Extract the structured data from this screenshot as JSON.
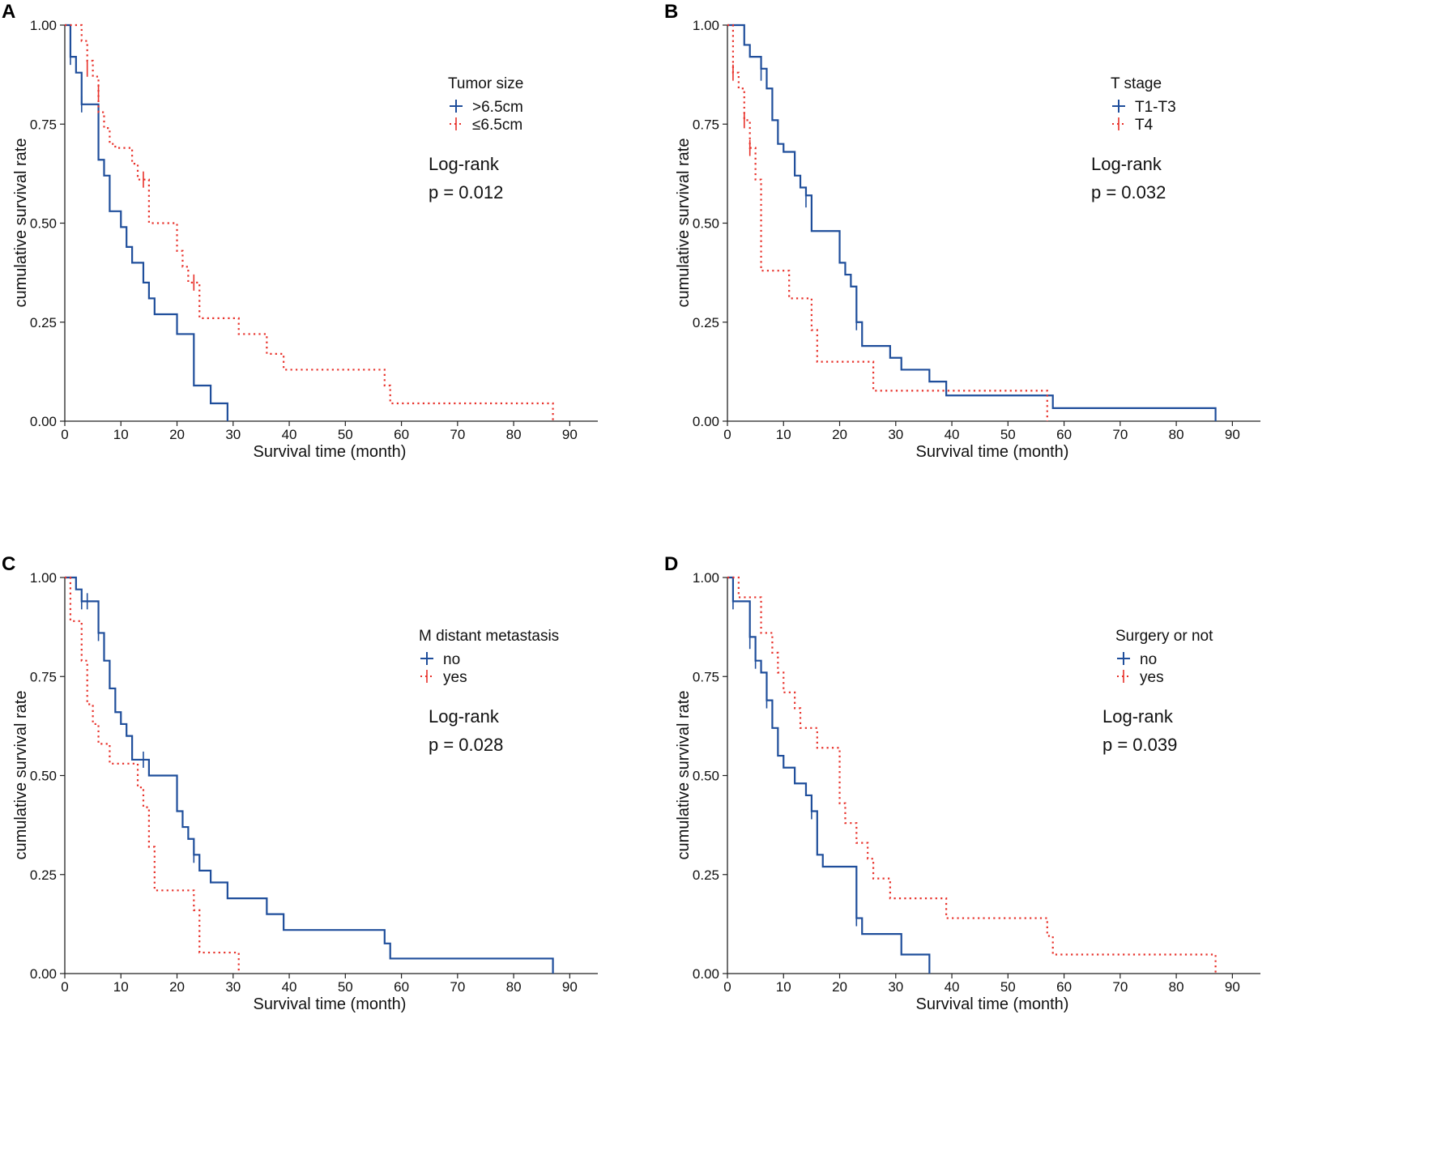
{
  "colors": {
    "solid": "#1f4e9b",
    "dotted": "#e8312a",
    "axis": "#222222"
  },
  "chart_data": [
    {
      "type": "line",
      "panel": "A",
      "xlabel": "Survival time (month)",
      "ylabel": "cumulative survival rate",
      "xlim": [
        0,
        95
      ],
      "ylim": [
        0,
        1
      ],
      "xticks": [
        "0",
        "10",
        "20",
        "30",
        "40",
        "50",
        "60",
        "70",
        "80",
        "90"
      ],
      "yticks": [
        "0.00",
        "0.25",
        "0.50",
        "0.75",
        "1.00"
      ],
      "legend_title": "Tumor size",
      "stat_label": "Log-rank",
      "p_value": "p = 0.012",
      "series": [
        {
          "name": ">6.5cm",
          "style": "solid",
          "steps": [
            [
              0,
              1.0
            ],
            [
              1,
              0.92
            ],
            [
              2,
              0.88
            ],
            [
              3,
              0.8
            ],
            [
              6,
              0.66
            ],
            [
              7,
              0.62
            ],
            [
              8,
              0.53
            ],
            [
              10,
              0.49
            ],
            [
              11,
              0.44
            ],
            [
              12,
              0.4
            ],
            [
              14,
              0.35
            ],
            [
              15,
              0.31
            ],
            [
              16,
              0.27
            ],
            [
              20,
              0.22
            ],
            [
              23,
              0.09
            ],
            [
              26,
              0.045
            ],
            [
              29,
              0.0
            ]
          ],
          "censors": [
            [
              1,
              0.92
            ],
            [
              3,
              0.8
            ]
          ]
        },
        {
          "name": "≤6.5cm",
          "style": "dotted",
          "steps": [
            [
              0,
              1.0
            ],
            [
              3,
              0.96
            ],
            [
              4,
              0.91
            ],
            [
              5,
              0.87
            ],
            [
              6,
              0.78
            ],
            [
              7,
              0.74
            ],
            [
              8,
              0.7
            ],
            [
              9,
              0.69
            ],
            [
              12,
              0.65
            ],
            [
              13,
              0.61
            ],
            [
              15,
              0.5
            ],
            [
              20,
              0.43
            ],
            [
              21,
              0.39
            ],
            [
              22,
              0.35
            ],
            [
              24,
              0.26
            ],
            [
              31,
              0.22
            ],
            [
              36,
              0.17
            ],
            [
              39,
              0.13
            ],
            [
              57,
              0.09
            ],
            [
              58,
              0.045
            ],
            [
              87,
              0.0
            ]
          ],
          "censors": [
            [
              4,
              0.89
            ],
            [
              6,
              0.83
            ],
            [
              14,
              0.61
            ],
            [
              23,
              0.35
            ]
          ]
        }
      ]
    },
    {
      "type": "line",
      "panel": "B",
      "xlabel": "Survival time (month)",
      "ylabel": "cumulative survival rate",
      "xlim": [
        0,
        95
      ],
      "ylim": [
        0,
        1
      ],
      "xticks": [
        "0",
        "10",
        "20",
        "30",
        "40",
        "50",
        "60",
        "70",
        "80",
        "90"
      ],
      "yticks": [
        "0.00",
        "0.25",
        "0.50",
        "0.75",
        "1.00"
      ],
      "legend_title": "T stage",
      "stat_label": "Log-rank",
      "p_value": "p = 0.032",
      "series": [
        {
          "name": "T1-T3",
          "style": "solid",
          "steps": [
            [
              0,
              1.0
            ],
            [
              3,
              0.95
            ],
            [
              4,
              0.92
            ],
            [
              6,
              0.89
            ],
            [
              7,
              0.84
            ],
            [
              8,
              0.76
            ],
            [
              9,
              0.7
            ],
            [
              10,
              0.68
            ],
            [
              12,
              0.62
            ],
            [
              13,
              0.59
            ],
            [
              14,
              0.57
            ],
            [
              15,
              0.48
            ],
            [
              20,
              0.4
            ],
            [
              21,
              0.37
            ],
            [
              22,
              0.34
            ],
            [
              23,
              0.25
            ],
            [
              24,
              0.19
            ],
            [
              29,
              0.16
            ],
            [
              31,
              0.13
            ],
            [
              36,
              0.1
            ],
            [
              39,
              0.065
            ],
            [
              58,
              0.033
            ],
            [
              87,
              0.0
            ]
          ],
          "censors": [
            [
              6,
              0.88
            ],
            [
              14,
              0.56
            ],
            [
              23,
              0.25
            ]
          ]
        },
        {
          "name": "T4",
          "style": "dotted",
          "steps": [
            [
              0,
              1.0
            ],
            [
              1,
              0.88
            ],
            [
              2,
              0.84
            ],
            [
              3,
              0.76
            ],
            [
              4,
              0.69
            ],
            [
              5,
              0.61
            ],
            [
              6,
              0.38
            ],
            [
              11,
              0.31
            ],
            [
              15,
              0.23
            ],
            [
              16,
              0.15
            ],
            [
              26,
              0.077
            ],
            [
              57,
              0.0
            ]
          ],
          "censors": [
            [
              1,
              0.88
            ],
            [
              3,
              0.76
            ],
            [
              4,
              0.69
            ]
          ]
        }
      ]
    },
    {
      "type": "line",
      "panel": "C",
      "xlabel": "Survival time (month)",
      "ylabel": "cumulative survival rate",
      "xlim": [
        0,
        95
      ],
      "ylim": [
        0,
        1
      ],
      "xticks": [
        "0",
        "10",
        "20",
        "30",
        "40",
        "50",
        "60",
        "70",
        "80",
        "90"
      ],
      "yticks": [
        "0.00",
        "0.25",
        "0.50",
        "0.75",
        "1.00"
      ],
      "legend_title": "M distant metastasis",
      "stat_label": "Log-rank",
      "p_value": "p = 0.028",
      "series": [
        {
          "name": "no",
          "style": "solid",
          "steps": [
            [
              0,
              1.0
            ],
            [
              2,
              0.97
            ],
            [
              3,
              0.94
            ],
            [
              6,
              0.86
            ],
            [
              7,
              0.79
            ],
            [
              8,
              0.72
            ],
            [
              9,
              0.66
            ],
            [
              10,
              0.63
            ],
            [
              11,
              0.6
            ],
            [
              12,
              0.54
            ],
            [
              15,
              0.5
            ],
            [
              20,
              0.41
            ],
            [
              21,
              0.37
            ],
            [
              22,
              0.34
            ],
            [
              23,
              0.3
            ],
            [
              24,
              0.26
            ],
            [
              26,
              0.23
            ],
            [
              29,
              0.19
            ],
            [
              36,
              0.15
            ],
            [
              39,
              0.11
            ],
            [
              57,
              0.076
            ],
            [
              58,
              0.038
            ],
            [
              87,
              0.0
            ]
          ],
          "censors": [
            [
              3,
              0.94
            ],
            [
              4,
              0.94
            ],
            [
              6,
              0.86
            ],
            [
              14,
              0.54
            ],
            [
              23,
              0.3
            ]
          ]
        },
        {
          "name": "yes",
          "style": "dotted",
          "steps": [
            [
              0,
              1.0
            ],
            [
              1,
              0.89
            ],
            [
              3,
              0.79
            ],
            [
              4,
              0.68
            ],
            [
              5,
              0.63
            ],
            [
              6,
              0.58
            ],
            [
              8,
              0.53
            ],
            [
              13,
              0.47
            ],
            [
              14,
              0.42
            ],
            [
              15,
              0.32
            ],
            [
              16,
              0.21
            ],
            [
              23,
              0.16
            ],
            [
              24,
              0.053
            ],
            [
              31,
              0.0
            ]
          ],
          "censors": []
        }
      ]
    },
    {
      "type": "line",
      "panel": "D",
      "xlabel": "Survival time (month)",
      "ylabel": "cumulative survival rate",
      "xlim": [
        0,
        95
      ],
      "ylim": [
        0,
        1
      ],
      "xticks": [
        "0",
        "10",
        "20",
        "30",
        "40",
        "50",
        "60",
        "70",
        "80",
        "90"
      ],
      "yticks": [
        "0.00",
        "0.25",
        "0.50",
        "0.75",
        "1.00"
      ],
      "legend_title": "Surgery or not",
      "stat_label": "Log-rank",
      "p_value": "p = 0.039",
      "series": [
        {
          "name": "no",
          "style": "solid",
          "steps": [
            [
              0,
              1.0
            ],
            [
              1,
              0.94
            ],
            [
              4,
              0.85
            ],
            [
              5,
              0.79
            ],
            [
              6,
              0.76
            ],
            [
              7,
              0.69
            ],
            [
              8,
              0.62
            ],
            [
              9,
              0.55
            ],
            [
              10,
              0.52
            ],
            [
              12,
              0.48
            ],
            [
              14,
              0.45
            ],
            [
              15,
              0.41
            ],
            [
              16,
              0.3
            ],
            [
              17,
              0.27
            ],
            [
              23,
              0.14
            ],
            [
              24,
              0.1
            ],
            [
              31,
              0.048
            ],
            [
              36,
              0.0
            ]
          ],
          "censors": [
            [
              1,
              0.94
            ],
            [
              4,
              0.84
            ],
            [
              5,
              0.79
            ],
            [
              7,
              0.69
            ],
            [
              15,
              0.41
            ],
            [
              23,
              0.14
            ]
          ]
        },
        {
          "name": "yes",
          "style": "dotted",
          "steps": [
            [
              0,
              1.0
            ],
            [
              2,
              0.95
            ],
            [
              6,
              0.86
            ],
            [
              8,
              0.81
            ],
            [
              9,
              0.76
            ],
            [
              10,
              0.71
            ],
            [
              12,
              0.67
            ],
            [
              13,
              0.62
            ],
            [
              16,
              0.57
            ],
            [
              20,
              0.43
            ],
            [
              21,
              0.38
            ],
            [
              23,
              0.33
            ],
            [
              25,
              0.29
            ],
            [
              26,
              0.24
            ],
            [
              29,
              0.19
            ],
            [
              39,
              0.14
            ],
            [
              57,
              0.095
            ],
            [
              58,
              0.048
            ],
            [
              87,
              0.0
            ]
          ],
          "censors": []
        }
      ]
    }
  ]
}
